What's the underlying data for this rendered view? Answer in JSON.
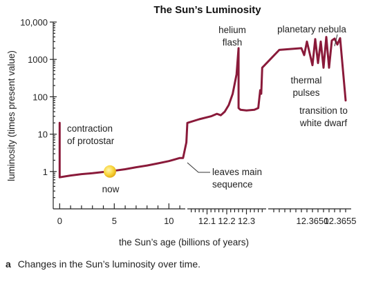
{
  "chart_data": {
    "type": "line",
    "title": "The Sun’s Luminosity",
    "xlabel": "the Sun’s age (billions of years)",
    "ylabel": "luminosity (times present value)",
    "y_scale": "log",
    "ylim": [
      0.1,
      10000
    ],
    "y_ticks": [
      "10,000",
      "1000",
      "100",
      "10",
      "1"
    ],
    "x_segments": [
      {
        "range": [
          -0.4,
          11.5
        ],
        "tick_labels": [
          "0",
          "5",
          "10"
        ],
        "tick_values": [
          0,
          5,
          10
        ]
      },
      {
        "range": [
          12.0,
          12.4
        ],
        "tick_labels": [
          "12.1",
          "12.2",
          "12.3"
        ],
        "tick_values": [
          12.1,
          12.2,
          12.3
        ]
      },
      {
        "range": [
          12.3642,
          12.3657
        ],
        "tick_labels": [
          "12.3650",
          "12.3655"
        ],
        "tick_values": [
          12.365,
          12.3655
        ]
      }
    ],
    "series": [
      {
        "points": [
          [
            0,
            20
          ],
          [
            0,
            0.7
          ],
          [
            1,
            0.78
          ],
          [
            2,
            0.85
          ],
          [
            3,
            0.9
          ],
          [
            4,
            0.97
          ],
          [
            5,
            1.05
          ],
          [
            6,
            1.15
          ],
          [
            7,
            1.3
          ],
          [
            8,
            1.45
          ],
          [
            9,
            1.65
          ],
          [
            10,
            1.9
          ],
          [
            11,
            2.3
          ],
          [
            11.3,
            2.3
          ],
          [
            11.6,
            6
          ],
          [
            12.0,
            20
          ],
          [
            12.06,
            25
          ],
          [
            12.12,
            30
          ],
          [
            12.15,
            35
          ],
          [
            12.17,
            32
          ],
          [
            12.19,
            40
          ],
          [
            12.21,
            60
          ],
          [
            12.23,
            120
          ],
          [
            12.25,
            400
          ],
          [
            12.26,
            2000
          ],
          [
            12.26,
            50
          ],
          [
            12.27,
            45
          ],
          [
            12.3,
            43
          ],
          [
            12.34,
            45
          ],
          [
            12.36,
            50
          ],
          [
            12.37,
            150
          ],
          [
            12.375,
            120
          ],
          [
            12.38,
            600
          ],
          [
            12.3644,
            1800
          ],
          [
            12.3646,
            1900
          ],
          [
            12.3648,
            2000
          ],
          [
            12.36485,
            1300
          ],
          [
            12.3649,
            3000
          ],
          [
            12.365,
            700
          ],
          [
            12.36505,
            3500
          ],
          [
            12.3651,
            800
          ],
          [
            12.36515,
            3000
          ],
          [
            12.3652,
            600
          ],
          [
            12.36525,
            4000
          ],
          [
            12.3653,
            600
          ],
          [
            12.36535,
            3200
          ],
          [
            12.3654,
            3600
          ],
          [
            12.36545,
            2500
          ],
          [
            12.3655,
            3700
          ],
          [
            12.3656,
            80
          ]
        ]
      }
    ],
    "markers": [
      {
        "label": "now",
        "x": 4.6,
        "y": 1.0
      }
    ],
    "annotations": {
      "contraction": [
        "contraction",
        "of protostar"
      ],
      "leaves": [
        "leaves main",
        "sequence"
      ],
      "helium": [
        "helium",
        "flash"
      ],
      "planetary": "planetary nebula",
      "thermal": [
        "thermal",
        "pulses"
      ],
      "transition": [
        "transition to",
        "white dwarf"
      ]
    },
    "grid": false
  },
  "caption": {
    "label": "a",
    "text": "Changes in the Sun’s luminosity over time."
  },
  "colors": {
    "curve": "#8a1a3a",
    "now_marker": "#f5c518"
  }
}
